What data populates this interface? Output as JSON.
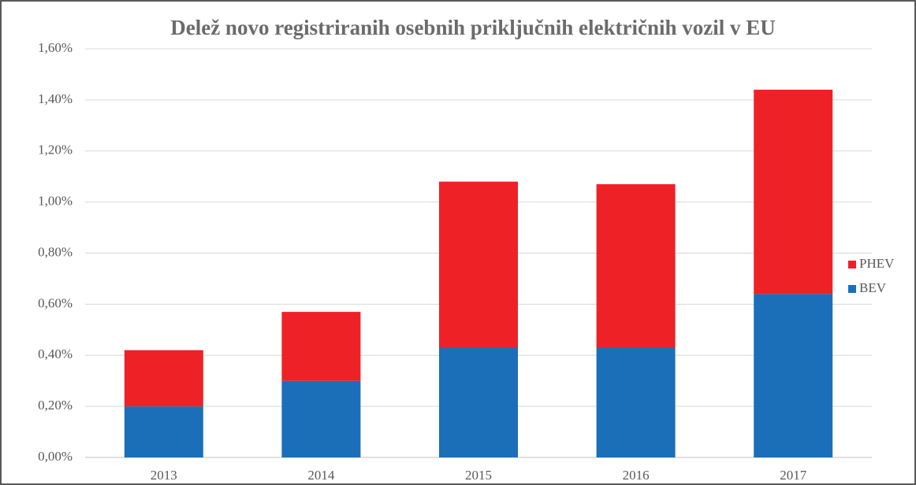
{
  "chart_data": {
    "type": "stacked_bar",
    "title": "Delež novo registriranih osebnih priključnih električnih vozil v EU",
    "categories": [
      "2013",
      "2014",
      "2015",
      "2016",
      "2017"
    ],
    "series": [
      {
        "name": "BEV",
        "color": "#1b6fb9",
        "values": [
          0.2,
          0.3,
          0.43,
          0.43,
          0.64
        ]
      },
      {
        "name": "PHEV",
        "color": "#ee2127",
        "values": [
          0.22,
          0.27,
          0.65,
          0.64,
          0.8
        ]
      }
    ],
    "ylim": [
      0,
      1.6
    ],
    "yticks": [
      {
        "value": 0,
        "label": "0,00%"
      },
      {
        "value": 0.2,
        "label": "0,20%"
      },
      {
        "value": 0.4,
        "label": "0,40%"
      },
      {
        "value": 0.6,
        "label": "0,60%"
      },
      {
        "value": 0.8,
        "label": "0,80%"
      },
      {
        "value": 1.0,
        "label": "1,00%"
      },
      {
        "value": 1.2,
        "label": "1,20%"
      },
      {
        "value": 1.4,
        "label": "1,40%"
      },
      {
        "value": 1.6,
        "label": "1,60%"
      }
    ],
    "grid": true,
    "legend": "right"
  }
}
